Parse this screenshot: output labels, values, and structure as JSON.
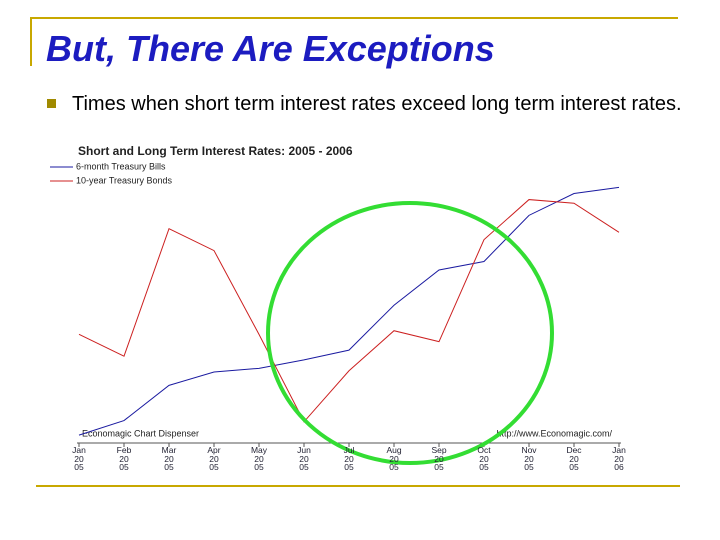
{
  "slide": {
    "title": "But, There Are Exceptions",
    "bullet": "Times when short term interest rates exceed long term interest rates."
  },
  "chart_data": {
    "type": "line",
    "title": "Short and Long Term Interest Rates: 2005 - 2006",
    "categories": [
      "Jan\n20\n05",
      "Feb\n20\n05",
      "Mar\n20\n05",
      "Apr\n20\n05",
      "May\n20\n05",
      "Jun\n20\n05",
      "Jul\n20\n05",
      "Aug\n20\n05",
      "Sep\n20\n05",
      "Oct\n20\n05",
      "Nov\n20\n05",
      "Dec\n20\n05",
      "Jan\n20\n06"
    ],
    "series": [
      {
        "name": "6-month Treasury Bills",
        "color": "#1a1aa0",
        "values": [
          2.44,
          2.56,
          2.85,
          2.96,
          2.99,
          3.06,
          3.14,
          3.51,
          3.8,
          3.87,
          4.25,
          4.43,
          4.48
        ]
      },
      {
        "name": "10-year Treasury Bonds",
        "color": "#cc2020",
        "axis": "y2",
        "values": [
          4.19,
          4.13,
          4.48,
          4.42,
          4.19,
          3.95,
          4.09,
          4.2,
          4.17,
          4.45,
          4.56,
          4.55,
          4.47
        ]
      }
    ],
    "ylim": [
      2.4,
      4.5
    ],
    "y2lim": [
      3.9,
      4.6
    ],
    "annotations": [
      "Economagic Chart Dispenser",
      "http://www.Economagic.com/"
    ]
  }
}
